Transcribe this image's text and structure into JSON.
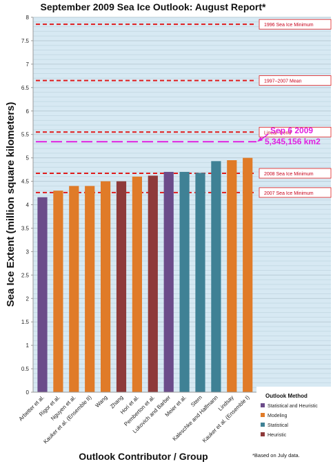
{
  "chart_data": {
    "type": "bar",
    "title": "September 2009 Sea Ice Outlook: August Report*",
    "xlabel": "Outlook Contributor / Group",
    "ylabel": "Sea Ice Extent (million square kilometers)",
    "ylim": [
      0,
      8
    ],
    "yticks": [
      "0",
      "0.5",
      "1",
      "1.5",
      "2",
      "2.5",
      "3",
      "3.5",
      "4",
      "4.5",
      "5",
      "5.5",
      "6",
      "6.5",
      "7",
      "7.5",
      "8"
    ],
    "grid": true,
    "categories": [
      "Arbetter et al.",
      "Rigor et al.",
      "Nguyen et al.",
      "Kauker et al. (Ensemble II)",
      "Wang",
      "Zhang",
      "Hori et al.",
      "Pemberton et al.",
      "Lukovich and Barber",
      "Meier et al.",
      "Stern",
      "Kaleschke and Halfmann",
      "Lindsay",
      "Kauker et al. (Ensemble I)"
    ],
    "values": [
      4.16,
      4.3,
      4.4,
      4.4,
      4.5,
      4.5,
      4.6,
      4.62,
      4.7,
      4.7,
      4.68,
      4.93,
      4.95,
      5.0
    ],
    "methods": [
      "Statistical and Heuristic",
      "Modeling",
      "Modeling",
      "Modeling",
      "Modeling",
      "Heuristic",
      "Modeling",
      "Heuristic",
      "Statistical and Heuristic",
      "Statistical",
      "Statistical",
      "Statistical",
      "Modeling",
      "Modeling"
    ],
    "reference_lines": [
      {
        "label": "1996 Sea Ice Minimum",
        "value": 7.85
      },
      {
        "label": "1997–2007 Mean",
        "value": 6.65
      },
      {
        "label": "Linear Trend",
        "value": 5.55
      },
      {
        "label": "2008 Sea Ice Minimum",
        "value": 4.67
      },
      {
        "label": "2007 Sea Ice Minimum",
        "value": 4.26
      }
    ],
    "observed": {
      "value": 5.345,
      "label_line1": "Sep 6 2009",
      "label_line2": "5,345,156 km2",
      "color": "#e020e0"
    },
    "legend": {
      "title": "Outlook Method",
      "position": "bottom-right",
      "items": [
        {
          "name": "Statistical and Heuristic",
          "color": "#6b4c8a"
        },
        {
          "name": "Modeling",
          "color": "#e07b28"
        },
        {
          "name": "Statistical",
          "color": "#3f8195"
        },
        {
          "name": "Heuristic",
          "color": "#8e3a3a"
        }
      ]
    },
    "footnote": "*Based on July data."
  }
}
